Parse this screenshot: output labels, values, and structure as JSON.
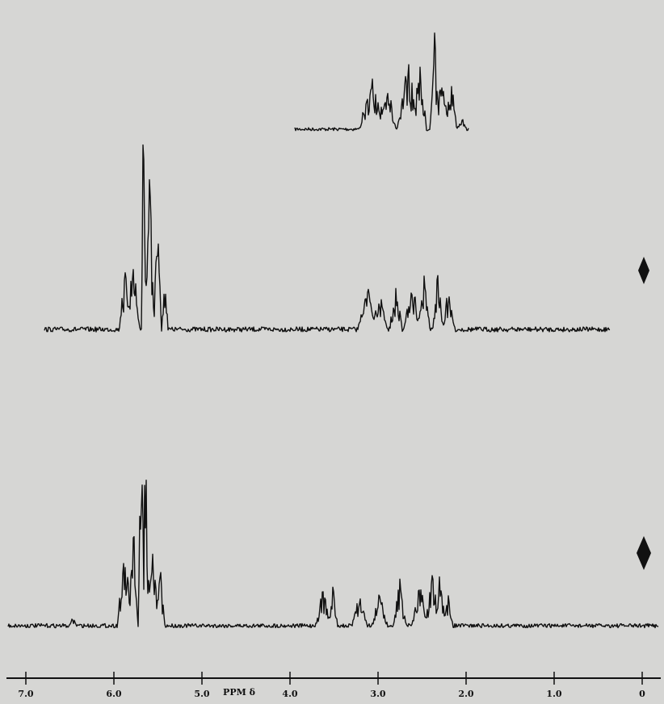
{
  "axis": {
    "label": "PPM δ",
    "ticks": [
      {
        "value": 7,
        "label": "7.0"
      },
      {
        "value": 6,
        "label": "6.0"
      },
      {
        "value": 5,
        "label": "5.0"
      },
      {
        "value": 4,
        "label": "4.0"
      },
      {
        "value": 3,
        "label": "3.0"
      },
      {
        "value": 2,
        "label": "2.0"
      },
      {
        "value": 1,
        "label": "1.0"
      },
      {
        "value": 0,
        "label": "0"
      }
    ]
  }
}
